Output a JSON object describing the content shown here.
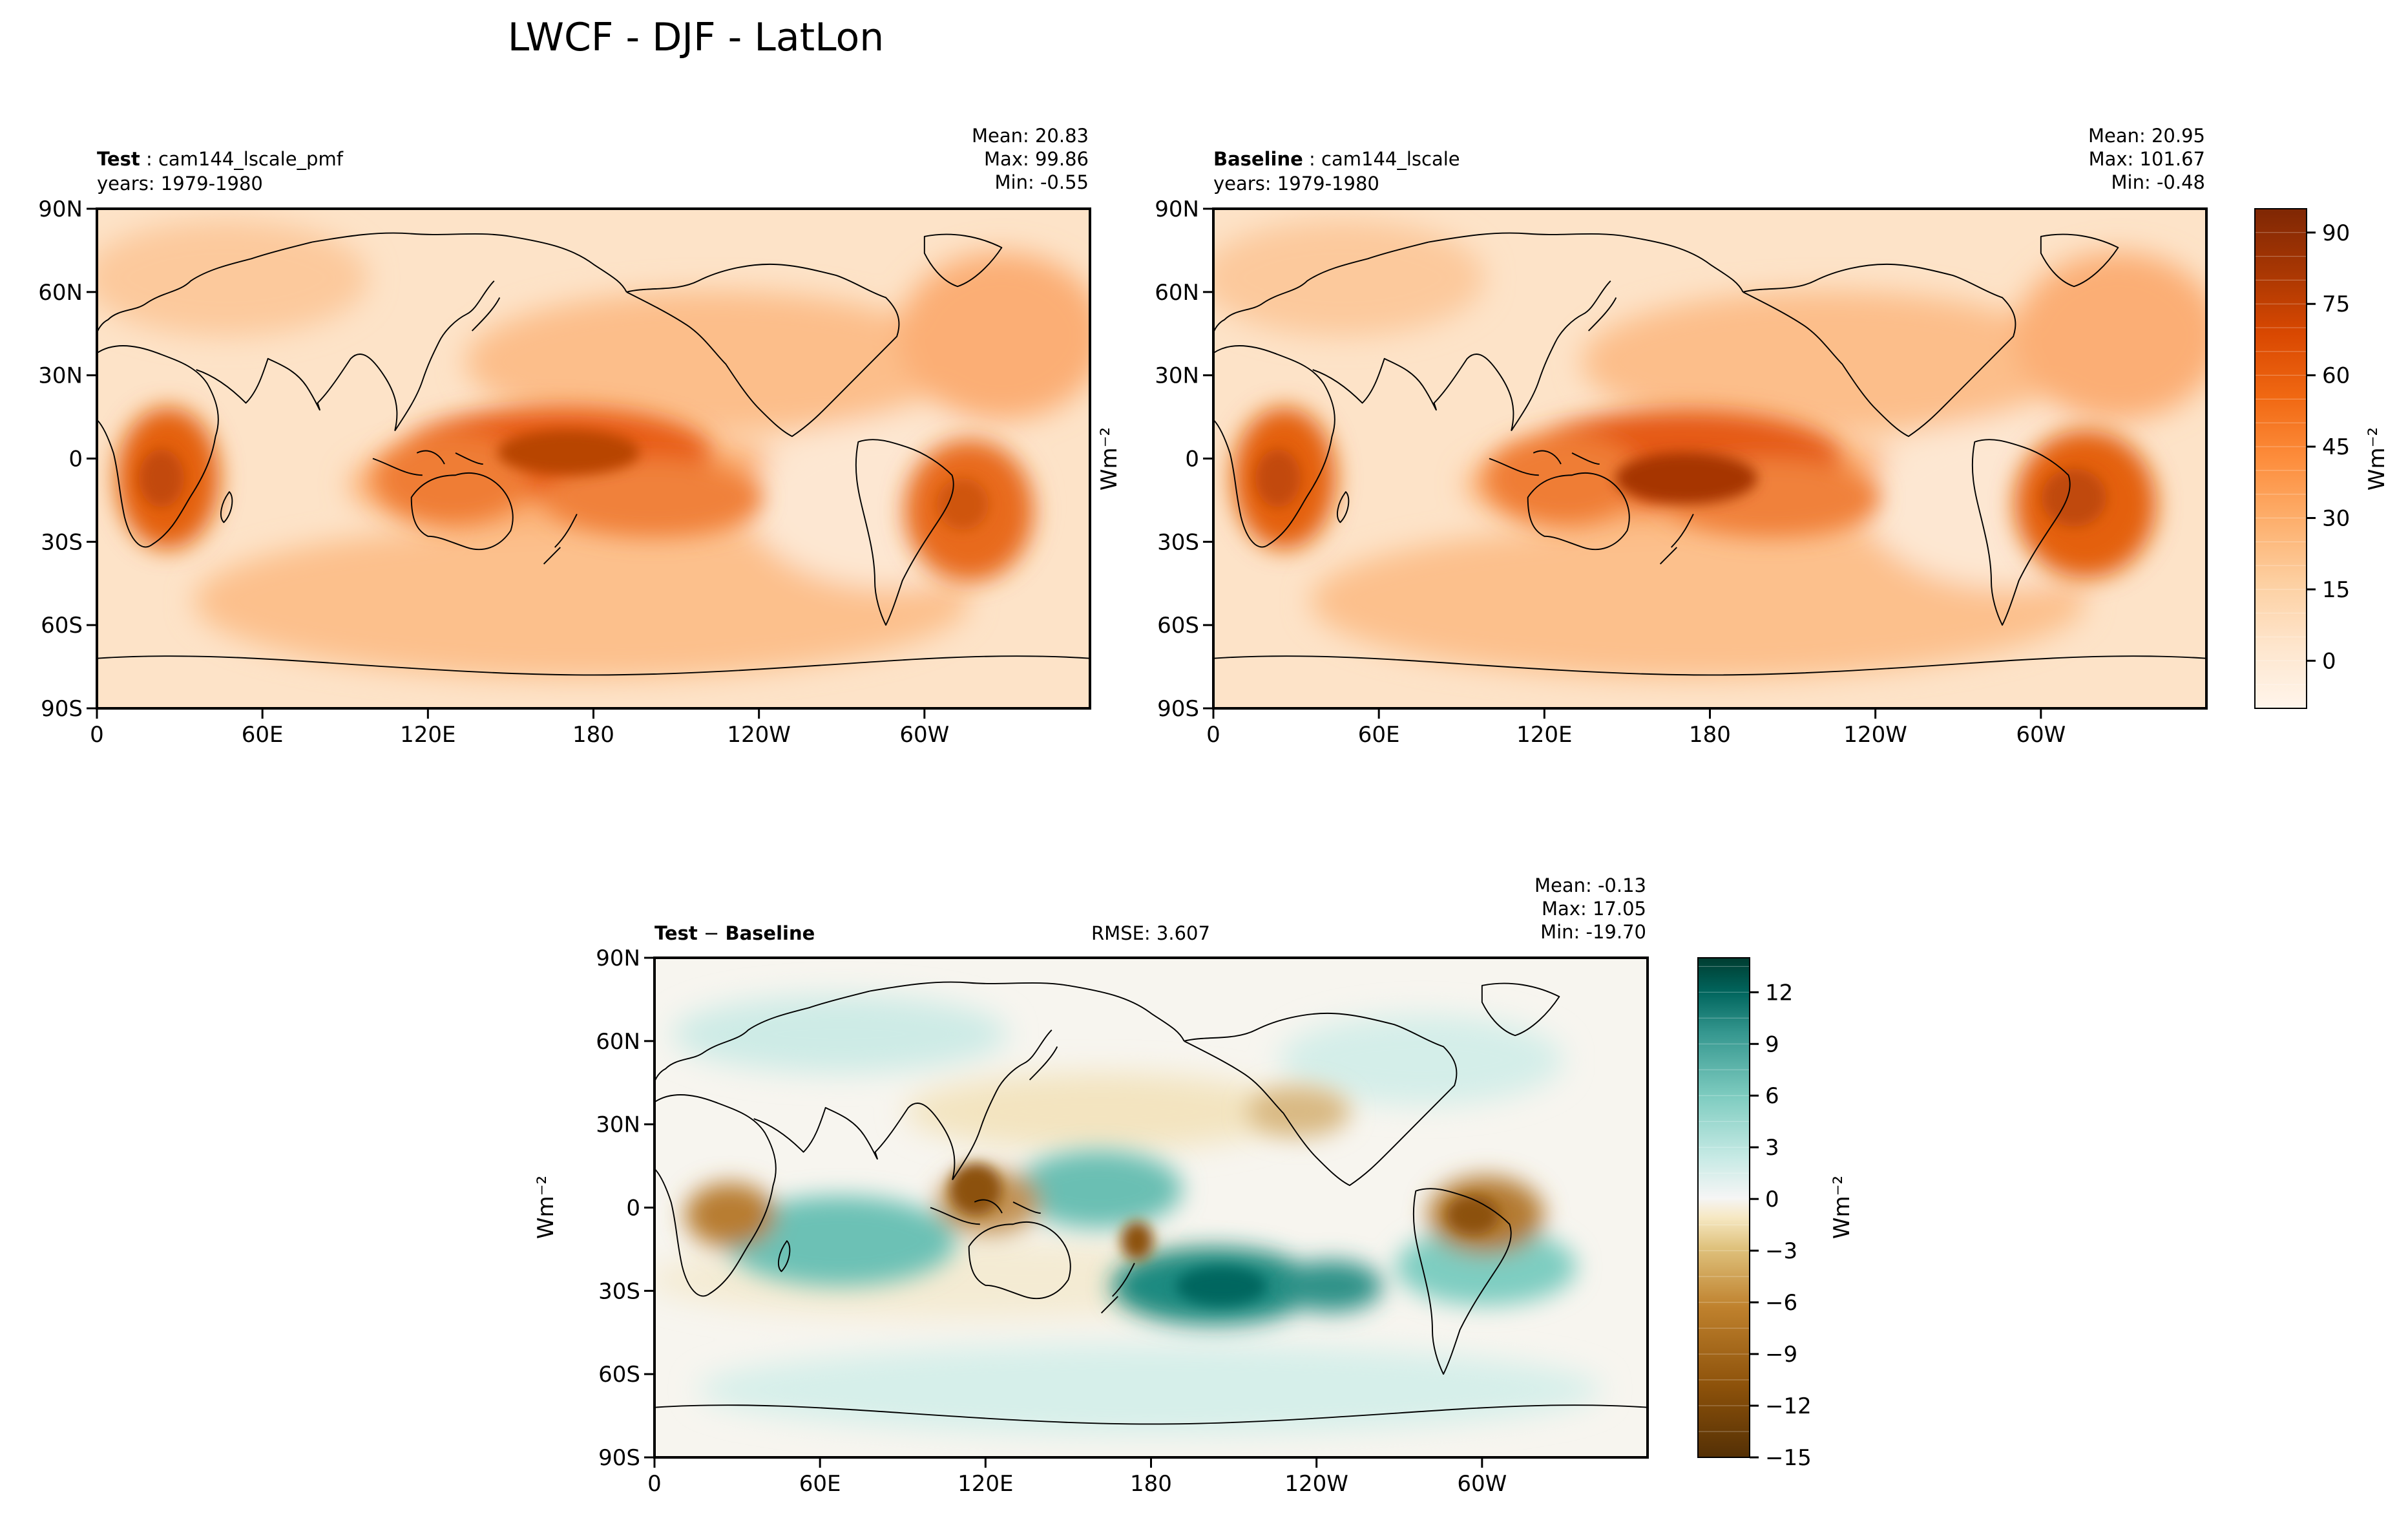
{
  "figure": {
    "title": "LWCF - DJF - LatLon"
  },
  "chart_data": [
    {
      "type": "heatmap",
      "panel": "test",
      "label_bold": "Test",
      "label_sep": " : ",
      "label_rest": "cam144_lscale_pmf",
      "years": "years: 1979-1980",
      "stats": [
        "Mean: 20.83",
        "Max: 99.86",
        "Min: -0.55"
      ],
      "x_ticks": [
        "0",
        "60E",
        "120E",
        "180",
        "120W",
        "60W"
      ],
      "y_ticks": [
        "90N",
        "60N",
        "30N",
        "0",
        "30S",
        "60S",
        "90S"
      ],
      "ylabel": "",
      "mean": 20.83,
      "max": 99.86,
      "min": -0.55
    },
    {
      "type": "heatmap",
      "panel": "baseline",
      "label_bold": "Baseline",
      "label_sep": " : ",
      "label_rest": "cam144_lscale",
      "years": "years: 1979-1980",
      "stats": [
        "Mean: 20.95",
        "Max: 101.67",
        "Min: -0.48"
      ],
      "x_ticks": [
        "0",
        "60E",
        "120E",
        "180",
        "120W",
        "60W"
      ],
      "y_ticks": [
        "90N",
        "60N",
        "30N",
        "0",
        "30S",
        "60S",
        "90S"
      ],
      "ylabel": "Wm⁻²",
      "colorbar": {
        "label": "Wm⁻²",
        "ticks": [
          "90",
          "75",
          "60",
          "45",
          "30",
          "15",
          "0"
        ],
        "tick_values": [
          90,
          75,
          60,
          45,
          30,
          15,
          0
        ],
        "range": [
          -10,
          95
        ],
        "colors": [
          "#fff5eb",
          "#fee6ce",
          "#fdd0a2",
          "#fdae6b",
          "#fd8d3c",
          "#f16913",
          "#d94801",
          "#a63603",
          "#7f2704"
        ]
      },
      "mean": 20.95,
      "max": 101.67,
      "min": -0.48
    },
    {
      "type": "heatmap",
      "panel": "difference",
      "label_bold_1": "Test",
      "label_minus": " − ",
      "label_bold_2": "Baseline",
      "rmse": "RMSE: 3.607",
      "stats": [
        "Mean: -0.13",
        "Max: 17.05",
        "Min: -19.70"
      ],
      "x_ticks": [
        "0",
        "60E",
        "120E",
        "180",
        "120W",
        "60W"
      ],
      "y_ticks": [
        "90N",
        "60N",
        "30N",
        "0",
        "30S",
        "60S",
        "90S"
      ],
      "ylabel": "Wm⁻²",
      "colorbar": {
        "label": "Wm⁻²",
        "ticks": [
          "12",
          "9",
          "6",
          "3",
          "0",
          "−3",
          "−6",
          "−9",
          "−12",
          "−15"
        ],
        "tick_values": [
          12,
          9,
          6,
          3,
          0,
          -3,
          -6,
          -9,
          -12,
          -15
        ],
        "range": [
          -15,
          14
        ],
        "colors": [
          "#543005",
          "#8c510a",
          "#bf812d",
          "#dfc27d",
          "#f6e8c3",
          "#f5f5f5",
          "#c7eae5",
          "#80cdc1",
          "#35978f",
          "#01665e",
          "#003c30"
        ]
      },
      "mean": -0.13,
      "max": 17.05,
      "min": -19.7
    }
  ]
}
